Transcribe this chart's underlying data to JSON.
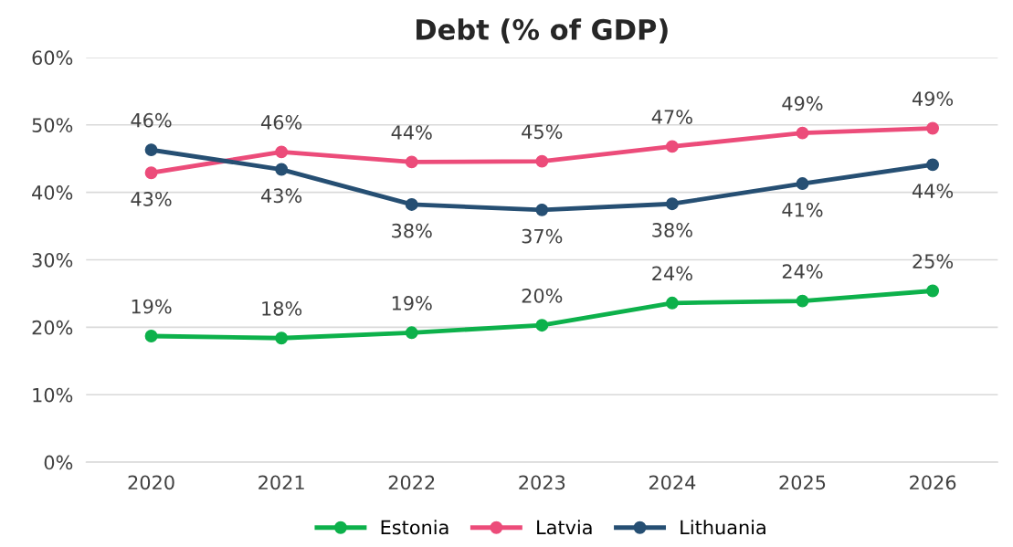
{
  "chart_data": {
    "type": "line",
    "title": "Debt (% of GDP)",
    "categories": [
      "2020",
      "2021",
      "2022",
      "2023",
      "2024",
      "2025",
      "2026"
    ],
    "series": [
      {
        "name": "Estonia",
        "color": "#0db14b",
        "values": [
          18.7,
          18.4,
          19.2,
          20.3,
          23.6,
          23.9,
          25.4
        ],
        "value_labels": [
          "19%",
          "18%",
          "19%",
          "20%",
          "24%",
          "24%",
          "25%"
        ]
      },
      {
        "name": "Latvia",
        "color": "#ec4c7a",
        "values": [
          42.9,
          46.0,
          44.5,
          44.6,
          46.8,
          48.8,
          49.5
        ],
        "value_labels": [
          "43%",
          "46%",
          "44%",
          "45%",
          "47%",
          "49%",
          "49%"
        ]
      },
      {
        "name": "Lithuania",
        "color": "#264f73",
        "values": [
          46.3,
          43.4,
          38.2,
          37.4,
          38.3,
          41.3,
          44.1
        ],
        "value_labels": [
          "46%",
          "43%",
          "38%",
          "37%",
          "38%",
          "41%",
          "44%"
        ]
      }
    ],
    "ylim": [
      0,
      60
    ],
    "yticks": [
      {
        "value": 0,
        "label": "0%"
      },
      {
        "value": 10,
        "label": "10%"
      },
      {
        "value": 20,
        "label": "20%"
      },
      {
        "value": 30,
        "label": "30%"
      },
      {
        "value": 40,
        "label": "40%"
      },
      {
        "value": 50,
        "label": "50%"
      },
      {
        "value": 60,
        "label": "60%"
      }
    ],
    "grid": "y",
    "legend": "bottom",
    "marker": "circle",
    "line_style": "solid"
  }
}
